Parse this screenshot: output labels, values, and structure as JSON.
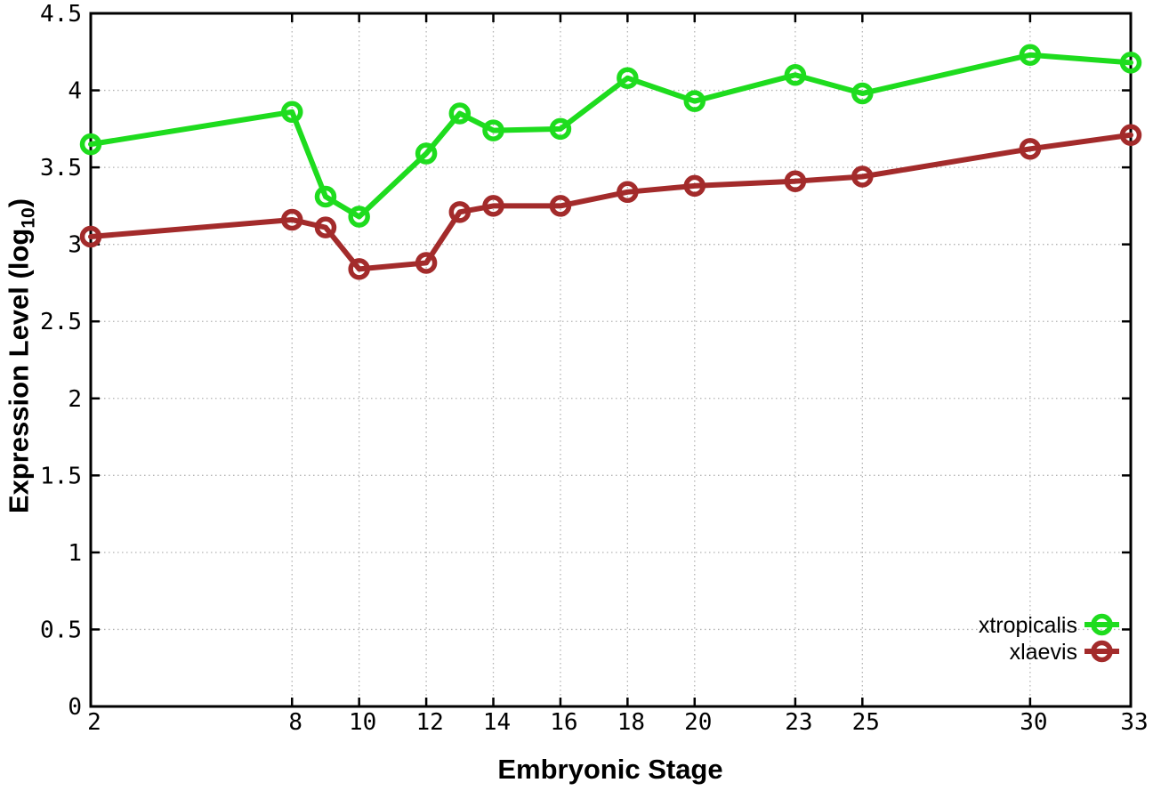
{
  "chart_data": {
    "type": "line",
    "title": "",
    "xlabel": "Embryonic Stage",
    "ylabel_prefix": "Expression Level (log",
    "ylabel_subscript": "10",
    "ylabel_suffix": ")",
    "x": [
      2,
      8,
      9,
      10,
      12,
      13,
      14,
      16,
      18,
      20,
      23,
      25,
      30,
      33
    ],
    "series": [
      {
        "name": "xtropicalis",
        "color": "#1edc1e",
        "values": [
          3.65,
          3.86,
          3.31,
          3.18,
          3.59,
          3.85,
          3.74,
          3.75,
          4.08,
          3.93,
          4.1,
          3.98,
          4.23,
          4.18
        ]
      },
      {
        "name": "xlaevis",
        "color": "#a32b2b",
        "values": [
          3.05,
          3.16,
          3.11,
          2.84,
          2.88,
          3.21,
          3.25,
          3.25,
          3.34,
          3.38,
          3.41,
          3.44,
          3.62,
          3.71
        ]
      }
    ],
    "xlim": [
      2,
      33
    ],
    "ylim": [
      0,
      4.5
    ],
    "xticks": [
      2,
      8,
      10,
      12,
      14,
      16,
      18,
      20,
      23,
      25,
      30,
      33
    ],
    "yticks": [
      0,
      0.5,
      1,
      1.5,
      2,
      2.5,
      3,
      3.5,
      4,
      4.5
    ],
    "grid": true,
    "grid_style": "dotted",
    "grid_color": "#b3b3b3",
    "axis_color": "#000000",
    "background": "#ffffff",
    "marker": "open-circle",
    "legend_position": "bottom-right-inside",
    "legend_entries": [
      "xtropicalis",
      "xlaevis"
    ]
  }
}
